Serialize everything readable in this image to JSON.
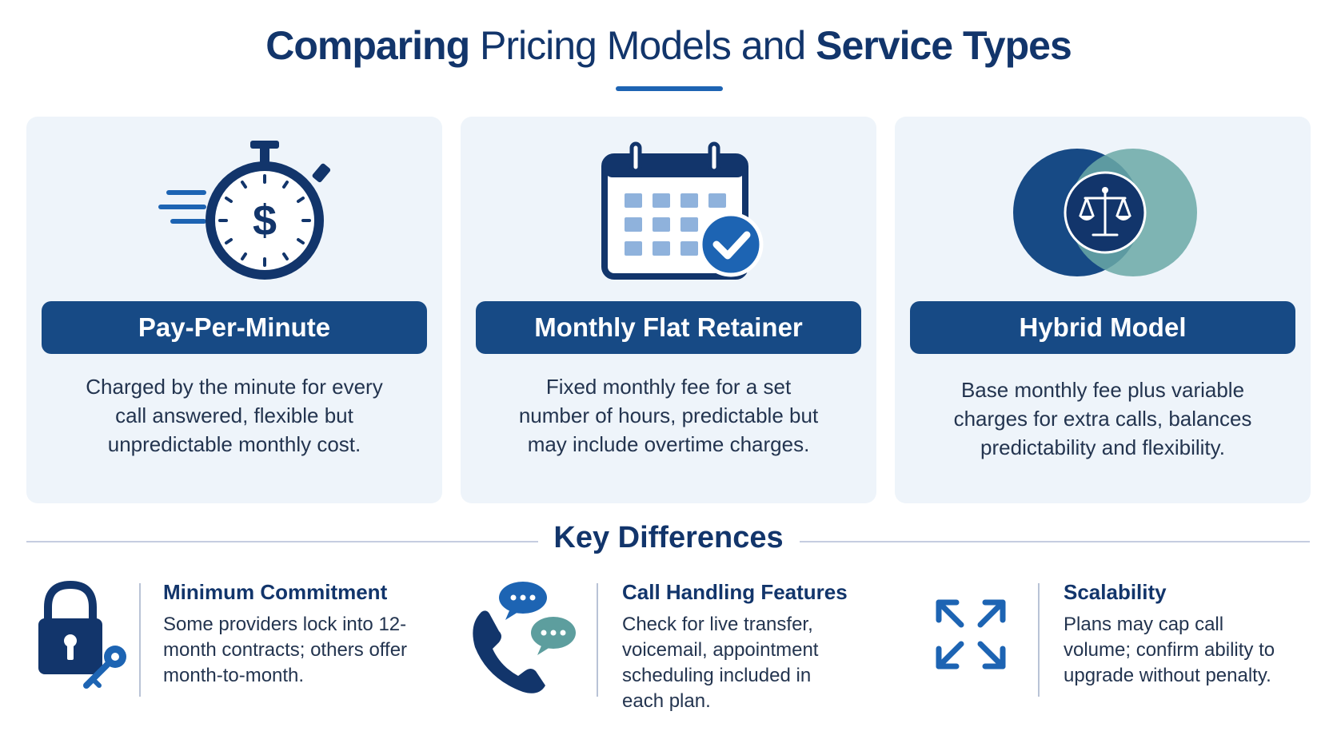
{
  "header": {
    "title_part1": "Comparing",
    "title_part2": " Pricing Models and ",
    "title_part3": "Service Types"
  },
  "pricing_models": [
    {
      "icon": "stopwatch-dollar-icon",
      "name": "Pay-Per-Minute",
      "description": "Charged by the minute for every call answered, flexible but unpredictable monthly cost."
    },
    {
      "icon": "calendar-check-icon",
      "name": "Monthly Flat Retainer",
      "description": "Fixed monthly fee for a set number of hours, predictable but may include overtime charges."
    },
    {
      "icon": "balance-scale-venn-icon",
      "name": "Hybrid Model",
      "description": "Base monthly fee plus variable charges for extra calls, balances predictability and flexibility."
    }
  ],
  "key_differences": {
    "title": "Key Differences",
    "items": [
      {
        "icon": "padlock-key-icon",
        "heading": "Minimum Commitment",
        "body": "Some providers lock into 12-month contracts; others offer month-to-month."
      },
      {
        "icon": "phone-chat-icon",
        "heading": "Call Handling Features",
        "body": "Check for live transfer, voicemail, appointment scheduling included in each plan."
      },
      {
        "icon": "expand-arrows-icon",
        "heading": "Scalability",
        "body": "Plans may cap call volume; confirm ability to upgrade without penalty."
      }
    ]
  },
  "colors": {
    "navy": "#12356b",
    "pill": "#174a85",
    "accent_blue": "#1d64b3",
    "teal": "#5d9e9e",
    "card_bg": "#eef4fa"
  }
}
